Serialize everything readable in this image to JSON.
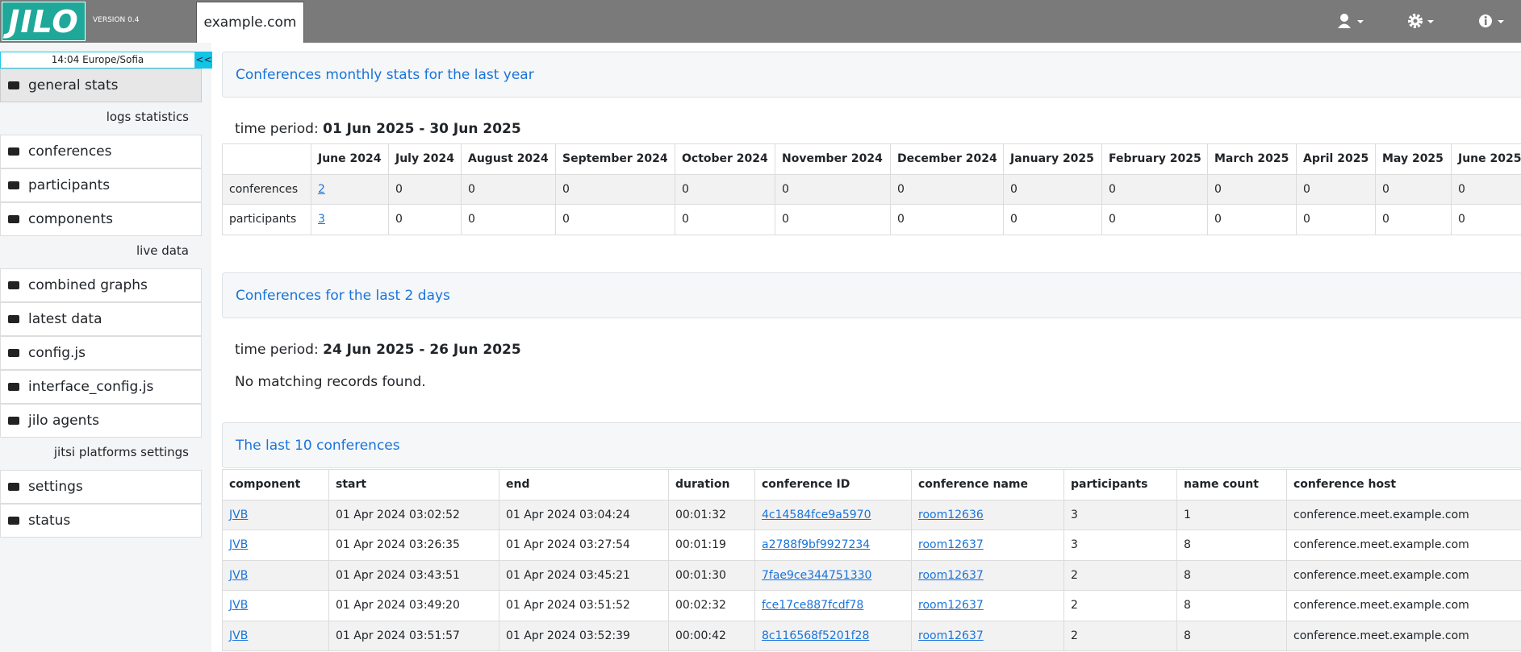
{
  "header": {
    "logo": "JILO",
    "version": "VERSION 0.4",
    "tab": "example.com"
  },
  "sidebar": {
    "time": "14:04  Europe/Sofia",
    "toggle": "<<",
    "top": [
      "general stats"
    ],
    "sections": [
      {
        "heading": "logs statistics",
        "items": [
          "conferences",
          "participants",
          "components"
        ]
      },
      {
        "heading": "live data",
        "items": [
          "combined graphs",
          "latest data",
          "config.js",
          "interface_config.js",
          "jilo agents"
        ]
      },
      {
        "heading": "jitsi platforms settings",
        "items": [
          "settings",
          "status"
        ]
      }
    ]
  },
  "panels": [
    {
      "title": "Conferences monthly stats for the last year",
      "period_label": "time period:",
      "period": "01 Jun 2025 - 30 Jun 2025",
      "table": {
        "header": [
          "June 2024",
          "July 2024",
          "August 2024",
          "September 2024",
          "October 2024",
          "November 2024",
          "December 2024",
          "January 2025",
          "February 2025",
          "March 2025",
          "April 2025",
          "May 2025",
          "June 2025"
        ],
        "rows": [
          [
            "conferences",
            "2",
            "0",
            "0",
            "0",
            "0",
            "0",
            "0",
            "0",
            "0",
            "0",
            "0",
            "0",
            "0"
          ],
          [
            "participants",
            "3",
            "0",
            "0",
            "0",
            "0",
            "0",
            "0",
            "0",
            "0",
            "0",
            "0",
            "0",
            "0"
          ]
        ]
      }
    },
    {
      "title": "Conferences for the last 2 days",
      "period_label": "time period:",
      "period": "24 Jun 2025 - 26 Jun 2025",
      "message": "No matching records found."
    },
    {
      "title": "The last 10 conferences",
      "table": {
        "header": [
          "component",
          "start",
          "end",
          "duration",
          "conference ID",
          "conference name",
          "participants",
          "name count",
          "conference host"
        ],
        "rows": [
          [
            "JVB",
            "01 Apr 2024 03:02:52",
            "01 Apr 2024 03:04:24",
            "00:01:32",
            "4c14584fce9a5970",
            "room12636",
            "3",
            "1",
            "conference.meet.example.com"
          ],
          [
            "JVB",
            "01 Apr 2024 03:26:35",
            "01 Apr 2024 03:27:54",
            "00:01:19",
            "a2788f9bf9927234",
            "room12637",
            "3",
            "8",
            "conference.meet.example.com"
          ],
          [
            "JVB",
            "01 Apr 2024 03:43:51",
            "01 Apr 2024 03:45:21",
            "00:01:30",
            "7fae9ce344751330",
            "room12637",
            "2",
            "8",
            "conference.meet.example.com"
          ],
          [
            "JVB",
            "01 Apr 2024 03:49:20",
            "01 Apr 2024 03:51:52",
            "00:02:32",
            "fce17ce887fcdf78",
            "room12637",
            "2",
            "8",
            "conference.meet.example.com"
          ],
          [
            "JVB",
            "01 Apr 2024 03:51:57",
            "01 Apr 2024 03:52:39",
            "00:00:42",
            "8c116568f5201f28",
            "room12637",
            "2",
            "8",
            "conference.meet.example.com"
          ]
        ]
      }
    }
  ]
}
